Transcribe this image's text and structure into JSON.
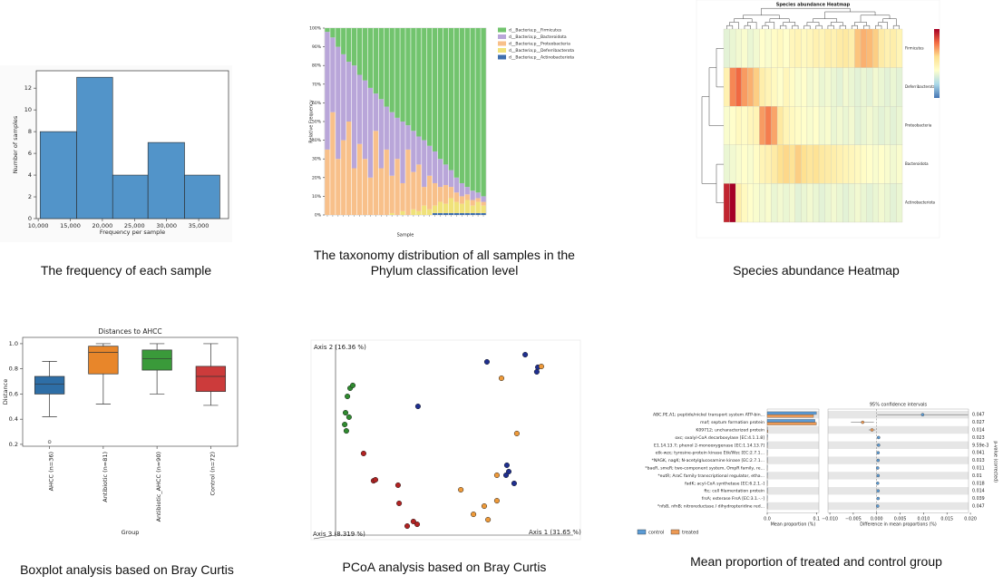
{
  "chart_data": [
    {
      "type": "histogram",
      "caption": "The frequency of each sample",
      "x_label": "Frequency per sample",
      "y_label": "Number of samples",
      "bins": [
        10300,
        16000,
        21600,
        27100,
        32800,
        38300
      ],
      "counts": [
        8,
        13,
        4,
        7,
        4
      ],
      "color": "#5294c9",
      "xlim": [
        9700,
        39650
      ],
      "ylim": [
        0,
        13.6
      ],
      "xticks": [
        {
          "value": 10000,
          "label": "10,000"
        },
        {
          "value": 15000,
          "label": "15,000"
        },
        {
          "value": 20000,
          "label": "20,000"
        },
        {
          "value": 25000,
          "label": "25,000"
        },
        {
          "value": 30000,
          "label": "30,000"
        },
        {
          "value": 35000,
          "label": "35,000"
        }
      ],
      "yticks": [
        0,
        2,
        4,
        6,
        8,
        10,
        12
      ]
    },
    {
      "type": "stacked_bar",
      "caption": "The taxonomy distribution of all samples in the Phylum classification level",
      "x_label": "Sample",
      "y_label": "Relative Frequency",
      "ylim": [
        0,
        100
      ],
      "yticks": [
        {
          "value": 0,
          "label": "0%"
        },
        {
          "value": 10,
          "label": "10%"
        },
        {
          "value": 20,
          "label": "20%"
        },
        {
          "value": 30,
          "label": "30%"
        },
        {
          "value": 40,
          "label": "40%"
        },
        {
          "value": 50,
          "label": "50%"
        },
        {
          "value": 60,
          "label": "60%"
        },
        {
          "value": 70,
          "label": "70%"
        },
        {
          "value": 80,
          "label": "80%"
        },
        {
          "value": 90,
          "label": "90%"
        },
        {
          "value": 100,
          "label": "100%"
        }
      ],
      "series": [
        {
          "name": "d__Bacteria;p__Firmicutes",
          "color": "#72c46e",
          "values": [
            2,
            5,
            10,
            14,
            18,
            20,
            25,
            28,
            32,
            35,
            38,
            42,
            45,
            48,
            50,
            52,
            55,
            58,
            60,
            63,
            66,
            70,
            73,
            76,
            80,
            83,
            85,
            87,
            88,
            90
          ]
        },
        {
          "name": "d__Bacteria;p__Bacteroidota",
          "color": "#b9a6d9",
          "values": [
            63,
            40,
            60,
            46,
            32,
            55,
            37,
            42,
            48,
            20,
            37,
            23,
            34,
            22,
            33,
            13,
            22,
            15,
            25,
            16,
            17,
            15,
            11,
            9,
            8,
            7,
            4,
            5,
            3,
            3
          ]
        },
        {
          "name": "d__Bacteria;p__Proteobacteria",
          "color": "#f8c08a",
          "values": [
            35,
            55,
            30,
            40,
            50,
            25,
            38,
            30,
            20,
            45,
            25,
            35,
            20,
            30,
            15,
            35,
            20,
            25,
            10,
            18,
            12,
            8,
            10,
            6,
            5,
            4,
            3,
            3,
            2,
            2
          ]
        },
        {
          "name": "d__Bacteria;p__Deferribacterota",
          "color": "#f0e27a",
          "values": [
            0,
            0,
            0,
            0,
            0,
            0,
            0,
            0,
            0,
            0,
            0,
            0,
            1,
            0,
            2,
            0,
            3,
            2,
            5,
            3,
            4,
            6,
            5,
            8,
            6,
            5,
            7,
            4,
            6,
            4
          ]
        },
        {
          "name": "d__Bacteria;p__Actinobacteriota",
          "color": "#3f6fae",
          "values": [
            0,
            0,
            0,
            0,
            0,
            0,
            0,
            0,
            0,
            0,
            0,
            0,
            0,
            0,
            0,
            0,
            0,
            0,
            0,
            0,
            1,
            1,
            1,
            1,
            1,
            1,
            1,
            1,
            1,
            1
          ]
        }
      ]
    },
    {
      "type": "heatmap",
      "caption": "Species abundance Heatmap",
      "title": "Species abundance Heatmap",
      "rows": [
        "Firmicutes",
        "Deferribacterota",
        "Proteobacteria",
        "Bacteroidota",
        "Actinobacteriota"
      ],
      "zlim": [
        -2.5,
        3.2
      ],
      "colorscale": [
        "#4575b4",
        "#abd9e9",
        "#ffffcc",
        "#fee090",
        "#f46d43",
        "#a50026"
      ],
      "z": [
        [
          -0.6,
          -0.5,
          -0.4,
          -0.3,
          -0.5,
          -0.4,
          -0.2,
          -0.3,
          -0.1,
          0.0,
          -0.2,
          0.1,
          0.2,
          0.0,
          0.1,
          0.3,
          0.2,
          0.4,
          0.3,
          0.5,
          0.6,
          0.4,
          1.2,
          1.4,
          1.3,
          1.1,
          0.5,
          0.3,
          0.4,
          0.2
        ],
        [
          0.3,
          1.8,
          2.1,
          1.6,
          1.4,
          1.1,
          0.4,
          0.2,
          0.0,
          -0.2,
          0.1,
          -0.1,
          -0.3,
          -0.2,
          -0.4,
          -0.3,
          -0.5,
          -0.4,
          -0.5,
          -0.6,
          -0.4,
          -0.5,
          -0.6,
          -0.5,
          -0.6,
          -0.4,
          -0.5,
          -0.6,
          -0.5,
          -0.6
        ],
        [
          -0.3,
          -0.2,
          0.0,
          -0.1,
          0.1,
          0.2,
          1.6,
          1.9,
          1.5,
          0.6,
          0.2,
          0.0,
          -0.1,
          -0.2,
          -0.3,
          -0.2,
          -0.4,
          -0.3,
          -0.5,
          -0.4,
          -0.5,
          -0.4,
          -0.6,
          -0.5,
          -0.4,
          -0.5,
          -0.6,
          -0.5,
          -0.6,
          -0.5
        ],
        [
          -0.5,
          -0.4,
          -0.3,
          -0.2,
          -0.3,
          -0.1,
          0.2,
          0.3,
          0.5,
          0.9,
          1.0,
          0.8,
          1.1,
          0.9,
          0.7,
          0.8,
          0.6,
          0.5,
          0.4,
          0.3,
          0.2,
          0.1,
          0.0,
          -0.1,
          -0.2,
          -0.3,
          -0.2,
          -0.3,
          -0.4,
          -0.3
        ],
        [
          2.8,
          3.2,
          0.4,
          0.0,
          -0.2,
          -0.3,
          -0.4,
          -0.3,
          -0.5,
          -0.4,
          -0.5,
          -0.4,
          -0.6,
          -0.5,
          -0.4,
          -0.5,
          -0.6,
          -0.5,
          -0.4,
          -0.5,
          -0.6,
          -0.5,
          -0.4,
          -0.5,
          -0.6,
          -0.5,
          -0.4,
          -0.5,
          -0.6,
          -0.5
        ]
      ]
    },
    {
      "type": "box",
      "caption": "Boxplot analysis based on Bray Curtis",
      "title": "Distances to AHCC",
      "x_label": "Group",
      "y_label": "Distance",
      "categories": [
        "AHCC (n=36)",
        "Antibiotic (n=81)",
        "Antibiotic_AHCC (n=90)",
        "Control (n=72)"
      ],
      "colors": [
        "#2e6ea6",
        "#e8862a",
        "#3a9a3a",
        "#cc3b3b"
      ],
      "boxes": [
        {
          "min": 0.42,
          "q1": 0.6,
          "median": 0.68,
          "q3": 0.74,
          "max": 0.86,
          "outliers": [
            0.22
          ]
        },
        {
          "min": 0.52,
          "q1": 0.76,
          "median": 0.93,
          "q3": 0.98,
          "max": 1.0,
          "outliers": []
        },
        {
          "min": 0.6,
          "q1": 0.79,
          "median": 0.88,
          "q3": 0.95,
          "max": 1.0,
          "outliers": []
        },
        {
          "min": 0.51,
          "q1": 0.62,
          "median": 0.74,
          "q3": 0.82,
          "max": 1.0,
          "outliers": []
        }
      ],
      "ylim": [
        0.185,
        1.05
      ],
      "yticks": [
        0.2,
        0.4,
        0.6,
        0.8,
        {
          "value": 1,
          "label": "1.0"
        }
      ]
    },
    {
      "type": "scatter",
      "caption": "PCoA analysis based on Bray Curtis",
      "x_label": "Axis 1 (31.65 %)",
      "y_label": "Axis 2 (16.36 %)",
      "z_label": "Axis 3 (8.319 %)",
      "xlim": [
        0,
        100
      ],
      "ylim": [
        0,
        100
      ],
      "series": [
        {
          "color": "#2f8a2f",
          "x": [
            14.5,
            13.5,
            15.5,
            12.8,
            12.5,
            13.1,
            14.1
          ],
          "y": [
            75.9,
            71.8,
            77.3,
            63.6,
            57.7,
            54.5,
            61.4
          ]
        },
        {
          "color": "#b22222",
          "x": [
            19.5,
            23.2,
            23.9,
            32.3,
            32.7,
            38.0,
            39.4,
            35.7
          ],
          "y": [
            43.2,
            29.5,
            30.0,
            27.3,
            18.2,
            9.1,
            7.7,
            6.8
          ]
        },
        {
          "color": "#1f2f8f",
          "x": [
            39.7,
            65.3,
            79.5,
            83.8,
            84.2,
            72.7,
            73.4,
            75.4,
            72.4
          ],
          "y": [
            66.8,
            89.1,
            92.7,
            84.1,
            86.4,
            37.3,
            34.1,
            28.2,
            32.3
          ]
        },
        {
          "color": "#ee9a3a",
          "x": [
            70.7,
            85.5,
            76.4,
            69.0,
            55.6,
            60.3,
            64.3,
            65.7,
            69.0
          ],
          "y": [
            80.9,
            86.8,
            53.2,
            32.3,
            25.0,
            12.7,
            16.8,
            10.0,
            19.5
          ]
        }
      ]
    },
    {
      "type": "extended_error_bar",
      "caption": "Mean proportion of treated and control group",
      "title": "95% confidence intervals",
      "x_label": "Mean proportion (%)",
      "x2_label": "Difference in mean proportions (%)",
      "p_label": "p-value (corrected)",
      "categories": [
        "ABC.PE.A1; peptide/nickel transport system ATP-bin...",
        "maf; septum formation protein",
        "K09712; uncharacterized protein",
        "oxc; oxalyl-CoA decarboxylase [EC:4.1.1.8]",
        "E1.14.13.7; phenol 2-monooxygenase [EC:1.14.13.7]",
        "etk-wzc; tyrosine-protein kinase Etk/Wzc [EC:2.7.1...",
        "*NAGK, nagK; N-acetylglucosamine kinase [EC:2.7.1...",
        "*baeR, smeR; two-component system, OmpR family, re...",
        "*eutR; AraC family transcriptional regulator, etha...",
        "fadK; acyl-CoA synthetase [EC:6.2.1.-]",
        "ftc; cell filamentation protein",
        "frsA; esterase FrsA [EC:3.1.-.-]",
        "*nfsB, nfnB; nitroreductase / dihydropteridine red..."
      ],
      "series": [
        {
          "name": "control",
          "color": "#5b9bd5",
          "values": [
            0.1,
            0.097,
            0.0005,
            0.0008,
            0.0007,
            0.0005,
            0.0006,
            0.0004,
            0.0005,
            0.0004,
            0.0006,
            0.0005,
            0.0004
          ]
        },
        {
          "name": "treated",
          "color": "#ed9a55",
          "values": [
            0.094,
            0.1,
            0.0015,
            0.0004,
            0.0003,
            0.0002,
            0.0003,
            0.0002,
            0.0002,
            0.0002,
            0.0003,
            0.0002,
            0.0002
          ]
        }
      ],
      "differences": [
        0.0098,
        -0.003,
        -0.001,
        0.0004,
        0.0004,
        0.0003,
        0.0003,
        0.0002,
        0.0003,
        0.0002,
        0.0003,
        0.0003,
        0.0002
      ],
      "ci_low": [
        0.0001,
        -0.0055,
        -0.0017,
        0.0001,
        0.0001,
        0.0001,
        0.0001,
        0.0,
        0.0001,
        0.0,
        0.0001,
        0.0001,
        0.0
      ],
      "ci_high": [
        0.0195,
        -0.0006,
        -0.0003,
        0.0007,
        0.0007,
        0.0005,
        0.0005,
        0.0004,
        0.0005,
        0.0004,
        0.0005,
        0.0005,
        0.0004
      ],
      "p_values": [
        0.047,
        0.027,
        0.014,
        0.023,
        {
          "value": 0.00959,
          "label": "9.59e-3"
        },
        0.041,
        0.013,
        0.011,
        0.01,
        0.018,
        0.014,
        0.039,
        0.047
      ],
      "xlim": [
        0,
        0.105
      ],
      "xticks": [
        {
          "value": 0,
          "label": "0.0"
        },
        0.1
      ],
      "x2lim": [
        -0.0104,
        0.0196
      ],
      "x2ticks": [
        {
          "value": -0.01,
          "label": "−0.010"
        },
        {
          "value": -0.005,
          "label": "−0.005"
        },
        {
          "value": 0,
          "label": "0.000"
        },
        {
          "value": 0.005,
          "label": "0.005"
        },
        {
          "value": 0.01,
          "label": "0.010"
        },
        {
          "value": 0.015,
          "label": "0.015"
        },
        {
          "value": 0.02,
          "label": "0.020"
        }
      ]
    }
  ]
}
